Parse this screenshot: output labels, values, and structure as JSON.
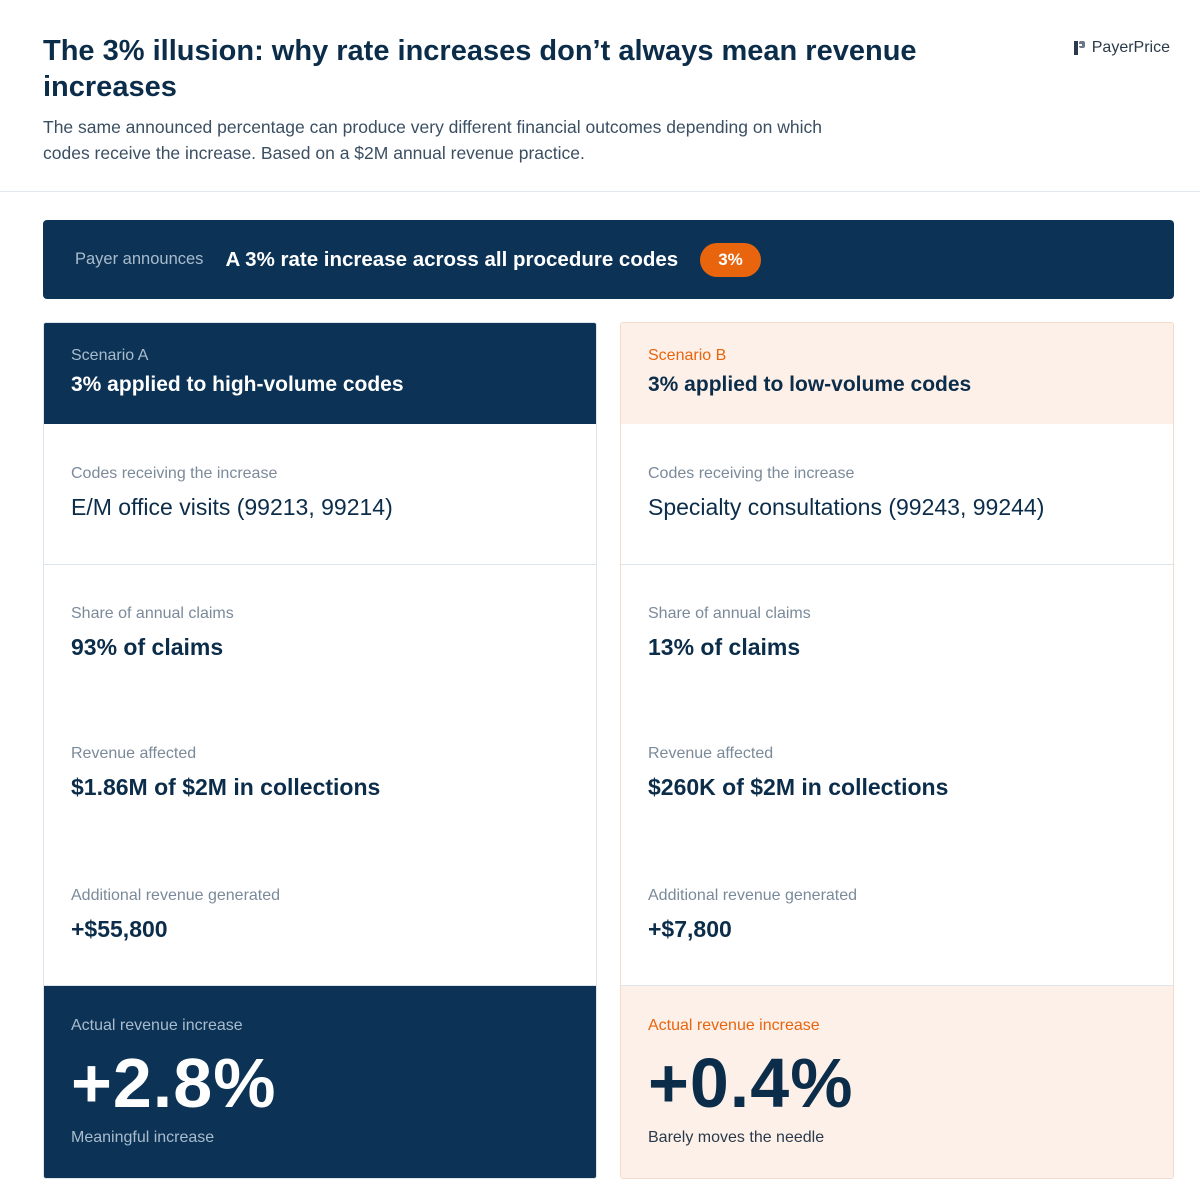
{
  "header": {
    "title": "The 3% illusion: why rate increases don’t always mean revenue increases",
    "subtitle": "The same announced percentage can produce very different financial outcomes depending on which codes receive the increase. Based on a $2M annual revenue practice.",
    "brand": "PayerPrice"
  },
  "banner": {
    "label": "Payer announces",
    "text": "A 3% rate increase across all procedure codes",
    "badge": "3%"
  },
  "scenarios": [
    {
      "tag": "Scenario A",
      "title": "3% applied to high-volume codes",
      "rows": [
        {
          "label": "Codes receiving the increase",
          "value": "E/M office visits (99213, 99214)"
        },
        {
          "label": "Share of annual claims",
          "value": "93% of claims"
        },
        {
          "label": "Revenue affected",
          "value": "$1.86M of $2M in collections"
        },
        {
          "label": "Additional revenue generated",
          "value": "+$55,800"
        }
      ],
      "result": {
        "label": "Actual revenue increase",
        "value": "+2.8%",
        "note": "Meaningful increase"
      }
    },
    {
      "tag": "Scenario B",
      "title": "3% applied to low-volume codes",
      "rows": [
        {
          "label": "Codes receiving the increase",
          "value": "Specialty consultations (99243, 99244)"
        },
        {
          "label": "Share of annual claims",
          "value": "13% of claims"
        },
        {
          "label": "Revenue affected",
          "value": "$260K of $2M in collections"
        },
        {
          "label": "Additional revenue generated",
          "value": "+$7,800"
        }
      ],
      "result": {
        "label": "Actual revenue increase",
        "value": "+0.4%",
        "note": "Barely moves the needle"
      }
    }
  ],
  "colors": {
    "navy": "#0c3355",
    "orange": "#e8650e",
    "peach": "#fdf0e8"
  }
}
